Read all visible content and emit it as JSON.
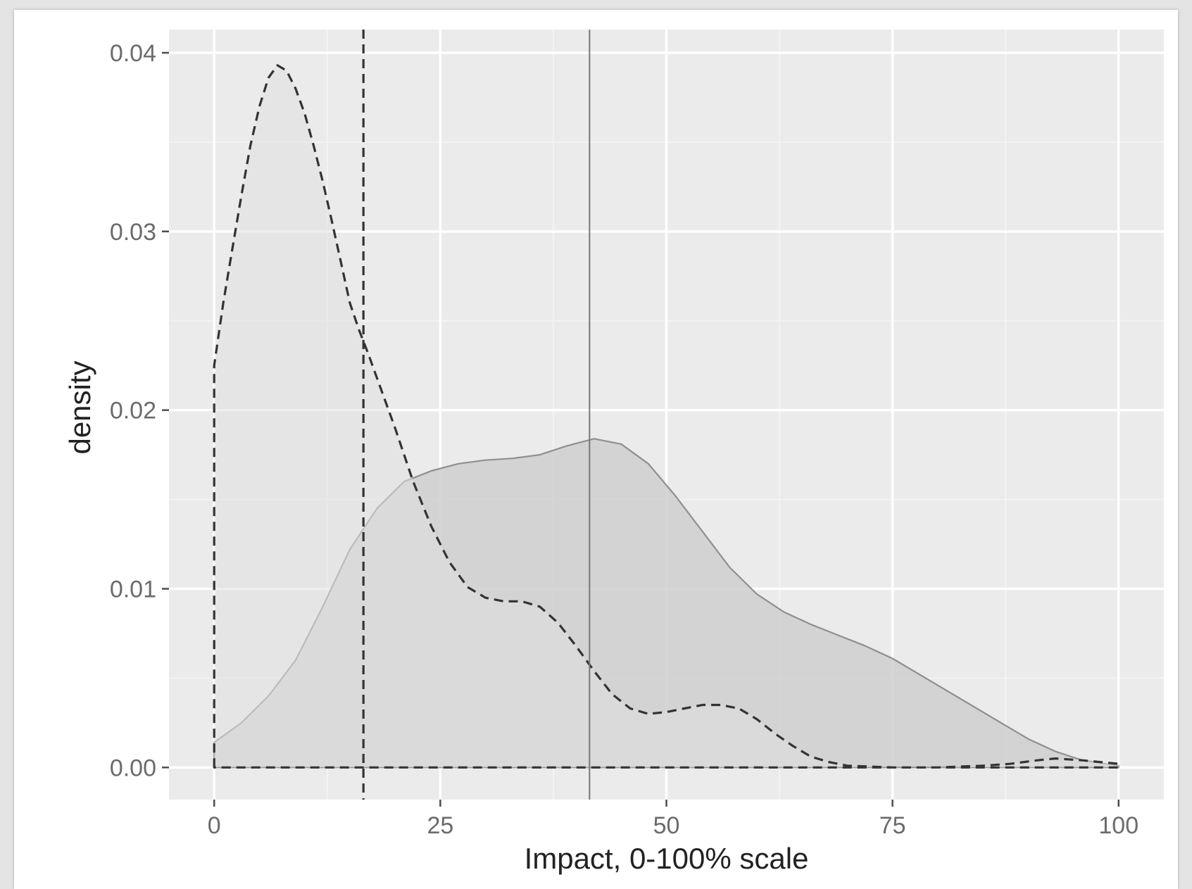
{
  "chart_data": {
    "type": "area",
    "title": "",
    "xlabel": "Impact, 0-100% scale",
    "ylabel": "density",
    "xlim": [
      -5,
      105
    ],
    "ylim": [
      -0.0018,
      0.0413
    ],
    "x_ticks": [
      0,
      25,
      50,
      75,
      100
    ],
    "x_tick_labels": [
      "0",
      "25",
      "50",
      "75",
      "100"
    ],
    "y_ticks": [
      0,
      0.01,
      0.02,
      0.03,
      0.04
    ],
    "y_tick_labels": [
      "0.00",
      "0.01",
      "0.02",
      "0.03",
      "0.04"
    ],
    "grid": true,
    "legend": "none",
    "series": [
      {
        "line_style": "solid",
        "fill": "#cfcfcf",
        "stroke": "#8f8f8f",
        "points": [
          [
            0,
            0.0014
          ],
          [
            3,
            0.0025
          ],
          [
            6,
            0.004
          ],
          [
            9,
            0.006
          ],
          [
            12,
            0.009
          ],
          [
            15,
            0.0122
          ],
          [
            18,
            0.0145
          ],
          [
            21,
            0.016
          ],
          [
            24,
            0.0166
          ],
          [
            27,
            0.017
          ],
          [
            30,
            0.0172
          ],
          [
            33,
            0.0173
          ],
          [
            36,
            0.0175
          ],
          [
            39,
            0.018
          ],
          [
            42,
            0.0184
          ],
          [
            45,
            0.0181
          ],
          [
            48,
            0.017
          ],
          [
            51,
            0.0152
          ],
          [
            54,
            0.0132
          ],
          [
            57,
            0.0112
          ],
          [
            60,
            0.0097
          ],
          [
            63,
            0.0087
          ],
          [
            66,
            0.008
          ],
          [
            69,
            0.0074
          ],
          [
            72,
            0.0068
          ],
          [
            75,
            0.0061
          ],
          [
            78,
            0.0052
          ],
          [
            81,
            0.0043
          ],
          [
            84,
            0.0034
          ],
          [
            87,
            0.0025
          ],
          [
            90,
            0.0016
          ],
          [
            93,
            0.0009
          ],
          [
            96,
            0.0004
          ],
          [
            100,
            0.0001
          ]
        ]
      },
      {
        "line_style": "dashed",
        "fill": "#e0e0e0",
        "stroke": "#333333",
        "points": [
          [
            0,
            0.0225
          ],
          [
            1,
            0.026
          ],
          [
            2,
            0.029
          ],
          [
            3,
            0.032
          ],
          [
            4,
            0.0348
          ],
          [
            5,
            0.037
          ],
          [
            6,
            0.0386
          ],
          [
            7,
            0.0393
          ],
          [
            8,
            0.039
          ],
          [
            9,
            0.038
          ],
          [
            10,
            0.0366
          ],
          [
            11,
            0.0348
          ],
          [
            12,
            0.0328
          ],
          [
            13,
            0.0306
          ],
          [
            14,
            0.0283
          ],
          [
            15,
            0.026
          ],
          [
            16,
            0.0245
          ],
          [
            17,
            0.0232
          ],
          [
            18,
            0.0218
          ],
          [
            20,
            0.019
          ],
          [
            22,
            0.016
          ],
          [
            24,
            0.0135
          ],
          [
            26,
            0.0115
          ],
          [
            28,
            0.0101
          ],
          [
            30,
            0.0095
          ],
          [
            32,
            0.0093
          ],
          [
            34,
            0.0093
          ],
          [
            36,
            0.009
          ],
          [
            38,
            0.0081
          ],
          [
            40,
            0.0068
          ],
          [
            42,
            0.0054
          ],
          [
            44,
            0.0041
          ],
          [
            46,
            0.0033
          ],
          [
            48,
            0.003
          ],
          [
            50,
            0.0031
          ],
          [
            52,
            0.0033
          ],
          [
            54,
            0.0035
          ],
          [
            56,
            0.0035
          ],
          [
            58,
            0.0033
          ],
          [
            60,
            0.0027
          ],
          [
            62,
            0.0019
          ],
          [
            64,
            0.0012
          ],
          [
            66,
            0.0006
          ],
          [
            68,
            0.0003
          ],
          [
            70,
            0.0001
          ],
          [
            75,
            0.0
          ],
          [
            80,
            0.0
          ],
          [
            85,
            0.0001
          ],
          [
            88,
            0.0002
          ],
          [
            91,
            0.0004
          ],
          [
            93,
            0.0005
          ],
          [
            96,
            0.0004
          ],
          [
            100,
            0.0002
          ]
        ]
      }
    ],
    "vlines": [
      {
        "x": 16.5,
        "line_style": "dashed",
        "color": "#333333"
      },
      {
        "x": 41.5,
        "line_style": "solid",
        "color": "#777777"
      }
    ],
    "colors": {
      "panel": "#ebebeb",
      "grid_major": "#ffffff",
      "grid_minor": "#f3f3f3",
      "tick": "#4d4d4d"
    }
  }
}
